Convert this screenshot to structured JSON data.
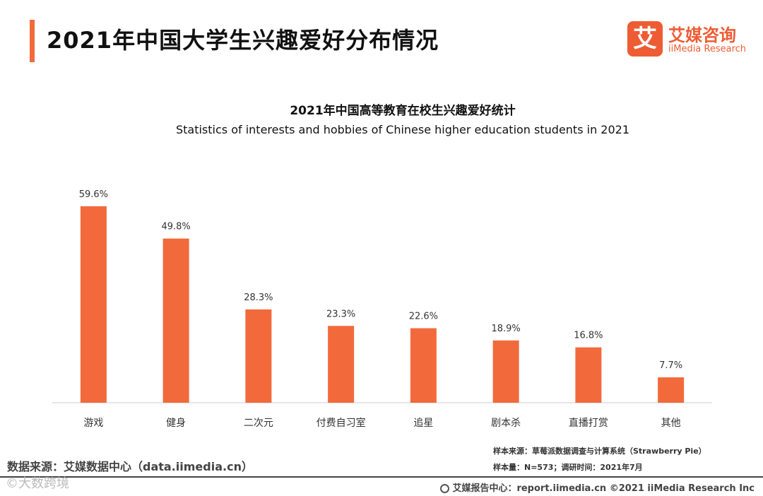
{
  "header": {
    "title": "2021年中国大学生兴趣爱好分布情况"
  },
  "brand": {
    "mark": "艾",
    "name_cn": "艾媒咨询",
    "name_en": "iiMedia Research",
    "color": "#ee5c34"
  },
  "chart_data": {
    "type": "bar",
    "title": "2021年中国高等教育在校生兴趣爱好统计",
    "subtitle": "Statistics of interests and hobbies of Chinese higher education students in 2021",
    "categories": [
      "游戏",
      "健身",
      "二次元",
      "付费自习室",
      "追星",
      "剧本杀",
      "直播打赏",
      "其他"
    ],
    "values": [
      59.6,
      49.8,
      28.3,
      23.3,
      22.6,
      18.9,
      16.8,
      7.7
    ],
    "labels": [
      "59.6%",
      "49.8%",
      "28.3%",
      "23.3%",
      "22.6%",
      "18.9%",
      "16.8%",
      "7.7%"
    ],
    "unit": "%",
    "ylim": [
      0,
      60
    ],
    "bar_color": "#f26a3c",
    "xlabel": "",
    "ylabel": ""
  },
  "footer": {
    "source": "数据来源：艾媒数据中心（data.iimedia.cn）",
    "sample_source": "样本来源：草莓派数据调查与计算系统（Strawberry Pie）",
    "sample_size": "样本量：N=573；调研时间：2021年7月",
    "watermark": "©大数跨境",
    "report_center": "艾媒报告中心：report.iimedia.cn    ©2021  iiMedia Research  Inc"
  }
}
